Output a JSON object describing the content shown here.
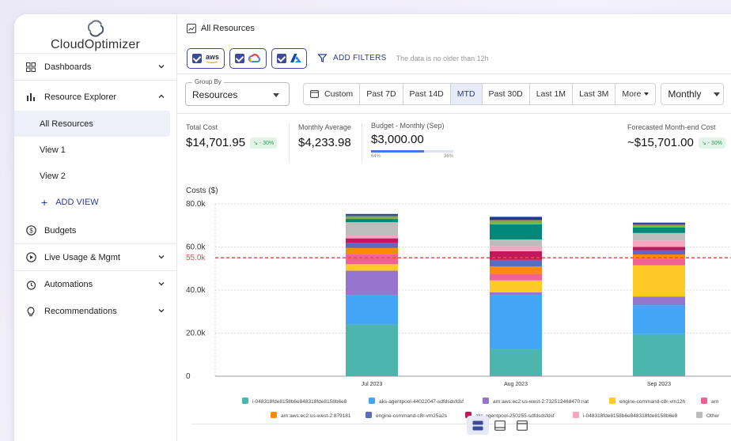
{
  "brand": {
    "name": "CloudOptimizer"
  },
  "sidebar": {
    "items": [
      {
        "label": "Dashboards",
        "icon": "dashboard-icon",
        "chevron": "down"
      },
      {
        "label": "Resource Explorer",
        "icon": "bar-chart-icon",
        "chevron": "up"
      }
    ],
    "sub_items": [
      "All Resources",
      "View 1",
      "View 2"
    ],
    "add_view": "ADD VIEW",
    "budgets": "Budgets",
    "live_usage": "Live Usage & Mgmt",
    "automations": "Automations",
    "recommendations": "Recommendations"
  },
  "header": {
    "title": "All Resources"
  },
  "filters": {
    "providers": [
      "aws",
      "gcp",
      "azure"
    ],
    "add_filters": "ADD FILTERS",
    "note": "The data is no older than 12h"
  },
  "controls": {
    "group_by_label": "Group By",
    "group_by_value": "Resources",
    "ranges": [
      "Custom",
      "Past 7D",
      "Past 14D",
      "MTD",
      "Past 30D",
      "Last 1M",
      "Last 3M",
      "More"
    ],
    "selected_range": "MTD",
    "granularity": "Monthly"
  },
  "stats": {
    "total_cost_label": "Total Cost",
    "total_cost": "$14,701.95",
    "total_cost_badge": "- 30%",
    "monthly_avg_label": "Monthly Average",
    "monthly_avg": "$4,233.98",
    "budget_label": "Budget - Monthly (Sep)",
    "budget": "$3,000.00",
    "budget_progress": 0.64,
    "budget_low": "64%",
    "budget_high": "36%",
    "forecast_label": "Forecasted Month-end Cost",
    "forecast": "~$15,701.00",
    "forecast_badge": "- 30%"
  },
  "chart_title": "Costs ($)",
  "colors": {
    "accent": "#3d4a9a",
    "threshold": "#e34d4d"
  },
  "chart_data": {
    "type": "bar",
    "stacked": true,
    "categories": [
      "Jul 2023",
      "Aug 2023",
      "Sep 2023"
    ],
    "ylim": [
      0,
      80000
    ],
    "yticks": [
      "80.0k",
      "60.0k",
      "40.0k",
      "20.0k",
      "0"
    ],
    "threshold": {
      "value": 55000,
      "label": "55.0k"
    },
    "series": [
      {
        "name": "i-048318fde8158b6e848318fde8158b6e8",
        "color": "#4db6ac",
        "values": [
          24000,
          12500,
          19500
        ]
      },
      {
        "name": "aks-agentpool-44022047-sdfdsdsfdsf",
        "color": "#42a5f5",
        "values": [
          13500,
          25000,
          13500
        ]
      },
      {
        "name": "arn:aws:ec2:us-west-2:732512468470:nat",
        "color": "#9575cd",
        "values": [
          11500,
          1500,
          4000
        ]
      },
      {
        "name": "engine-command-c8r-vm12h",
        "color": "#ffca28",
        "values": [
          3000,
          5500,
          14500
        ]
      },
      {
        "name": "arn",
        "color": "#f06292",
        "values": [
          4500,
          3000,
          3000
        ]
      },
      {
        "name": "arn:aws:ec2:us-west-2:879181",
        "color": "#fb8c00",
        "values": [
          3000,
          3500,
          2000
        ]
      },
      {
        "name": "engine-command-c8r-vm25a2s",
        "color": "#5c6bc0",
        "values": [
          2500,
          3000,
          2000
        ]
      },
      {
        "name": "aks-agentpool-250255-sdfdsdsfdsf",
        "color": "#c2185b",
        "values": [
          2000,
          4000,
          1500
        ]
      },
      {
        "name": "i-048318fde8158b6e848318fde8158b6e8",
        "color": "#f8a5c2",
        "values": [
          1500,
          2500,
          3000
        ]
      },
      {
        "name": "Other",
        "color": "#bdbdbd",
        "values": [
          6000,
          3000,
          3500
        ]
      },
      {
        "name": "",
        "color": "#00897b",
        "values": [
          1500,
          7000,
          2500
        ]
      },
      {
        "name": "",
        "color": "#7cb342",
        "values": [
          1000,
          1500,
          1000
        ]
      },
      {
        "name": "",
        "color": "#8d6e63",
        "values": [
          600,
          600,
          600
        ]
      },
      {
        "name": "",
        "color": "#1e3a8a",
        "values": [
          700,
          1400,
          700
        ]
      }
    ]
  }
}
